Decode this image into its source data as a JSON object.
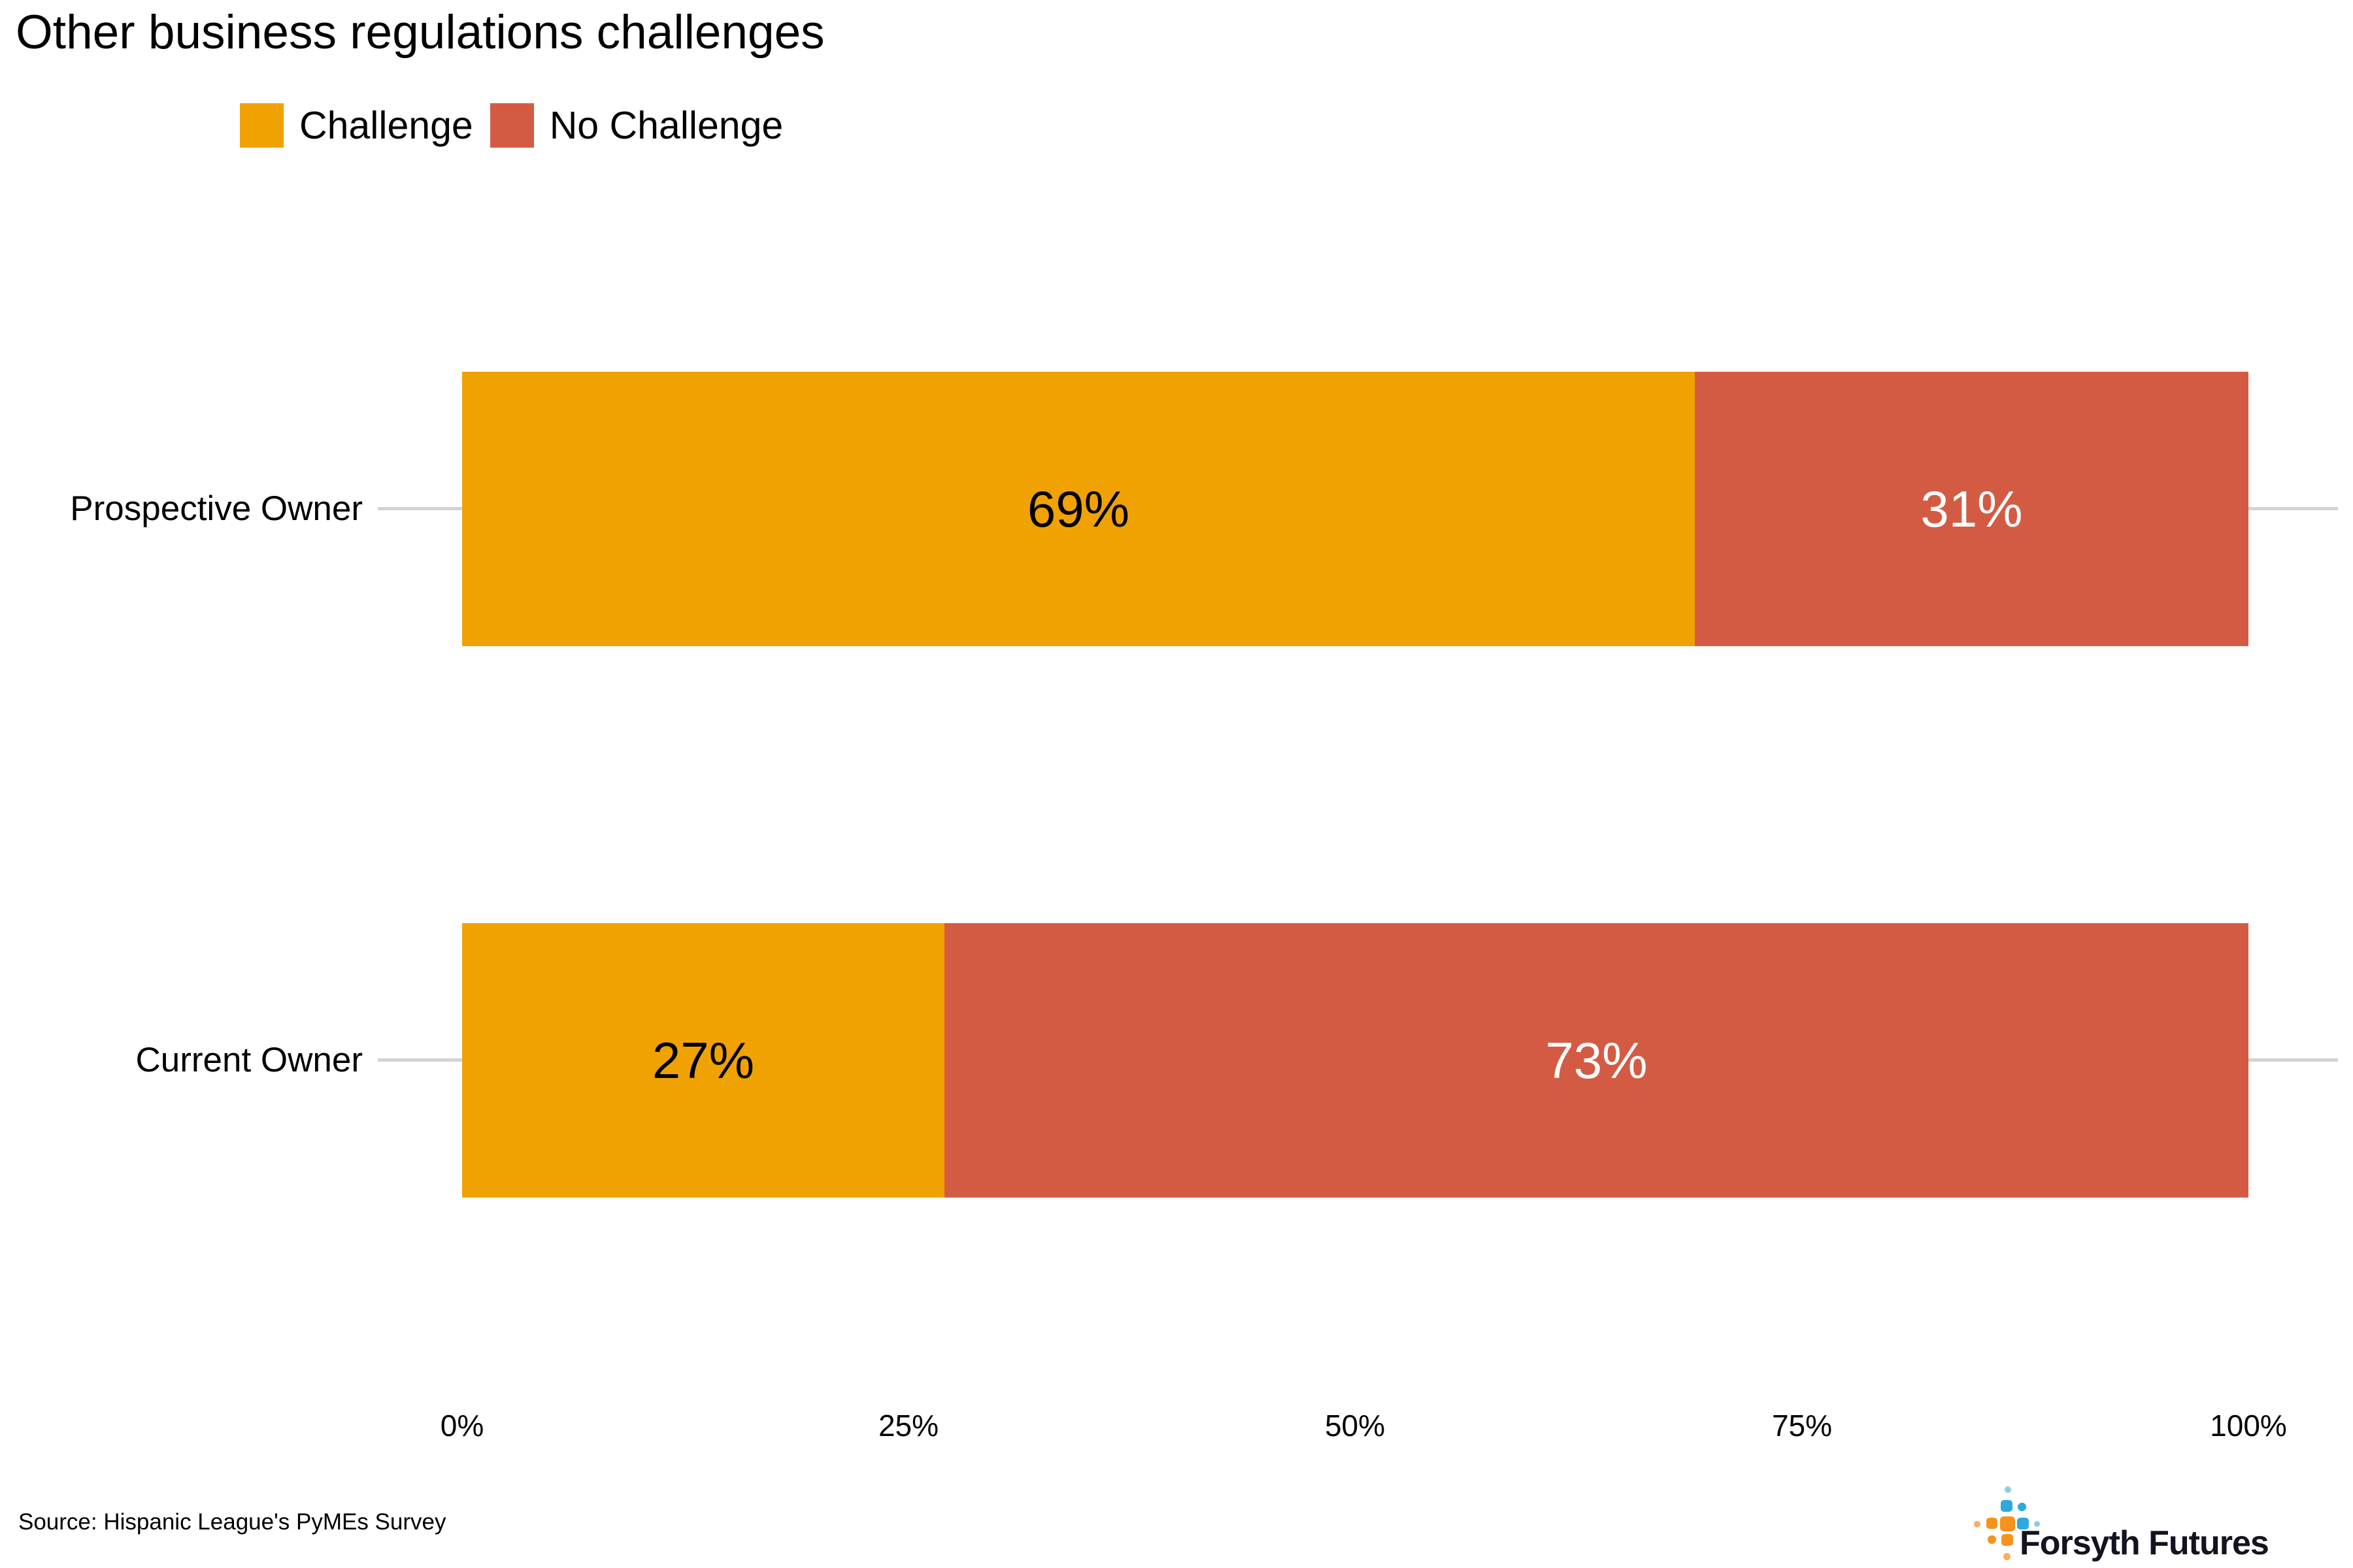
{
  "title": "Other business regulations challenges",
  "legend": {
    "items": [
      {
        "label": "Challenge",
        "color": "#F0A202"
      },
      {
        "label": "No Challenge",
        "color": "#D45B43"
      }
    ]
  },
  "chart_data": {
    "type": "bar",
    "orientation": "horizontal",
    "stacked": true,
    "title": "Other business regulations challenges",
    "categories": [
      "Prospective Owner",
      "Current Owner"
    ],
    "series": [
      {
        "name": "Challenge",
        "color": "#F0A202",
        "label_color": "#000000",
        "values": [
          69,
          27
        ]
      },
      {
        "name": "No Challenge",
        "color": "#D45B43",
        "label_color": "#FFFFFF",
        "values": [
          31,
          73
        ]
      }
    ],
    "value_labels": [
      [
        "69%",
        "31%"
      ],
      [
        "27%",
        "73%"
      ]
    ],
    "x_ticks": [
      "0%",
      "25%",
      "50%",
      "75%",
      "100%"
    ],
    "xlim": [
      0,
      100
    ],
    "xlabel": "",
    "ylabel": "",
    "grid": "horizontal category tick lines only",
    "legend_position": "top-left",
    "category_line_color": "#D3D3D3"
  },
  "source": "Source: Hispanic League's PyMEs Survey",
  "logo": {
    "text": "Forsyth Futures",
    "colors": {
      "blue": "#2EA9DC",
      "blue_light": "#8FCBE8",
      "orange": "#F6921E",
      "orange_light": "#F8AE61",
      "text": "#13141F"
    }
  }
}
